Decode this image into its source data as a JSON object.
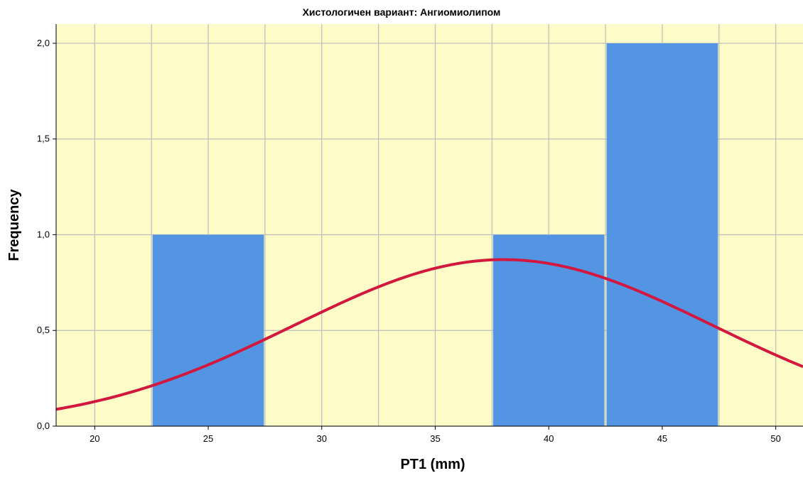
{
  "chart_data": {
    "type": "bar",
    "title": "Хистологичен вариант: Ангиомиолипом",
    "xlabel": "PT1 (mm)",
    "ylabel": "Frequency",
    "xlim": [
      18.3,
      51.2
    ],
    "ylim": [
      0,
      2.1
    ],
    "x_ticks": [
      20,
      25,
      30,
      35,
      40,
      45,
      50
    ],
    "x_tick_labels": [
      "20",
      "25",
      "30",
      "35",
      "40",
      "45",
      "50"
    ],
    "y_ticks": [
      0,
      0.5,
      1.0,
      1.5,
      2.0
    ],
    "y_tick_labels": [
      "0,0",
      "0,5",
      "1,0",
      "1,5",
      "2,0"
    ],
    "grid": true,
    "bins": [
      {
        "start": 22.5,
        "end": 27.5,
        "count": 1
      },
      {
        "start": 37.5,
        "end": 42.5,
        "count": 1
      },
      {
        "start": 42.5,
        "end": 47.5,
        "count": 2
      }
    ],
    "normal_curve": {
      "mean": 38,
      "sd": 9.2,
      "peak": 0.87
    },
    "colors": {
      "plot_bg": "#fdfbc8",
      "bar": "#5394e3",
      "curve": "#d2183e",
      "grid": "#bdbdbd"
    }
  }
}
